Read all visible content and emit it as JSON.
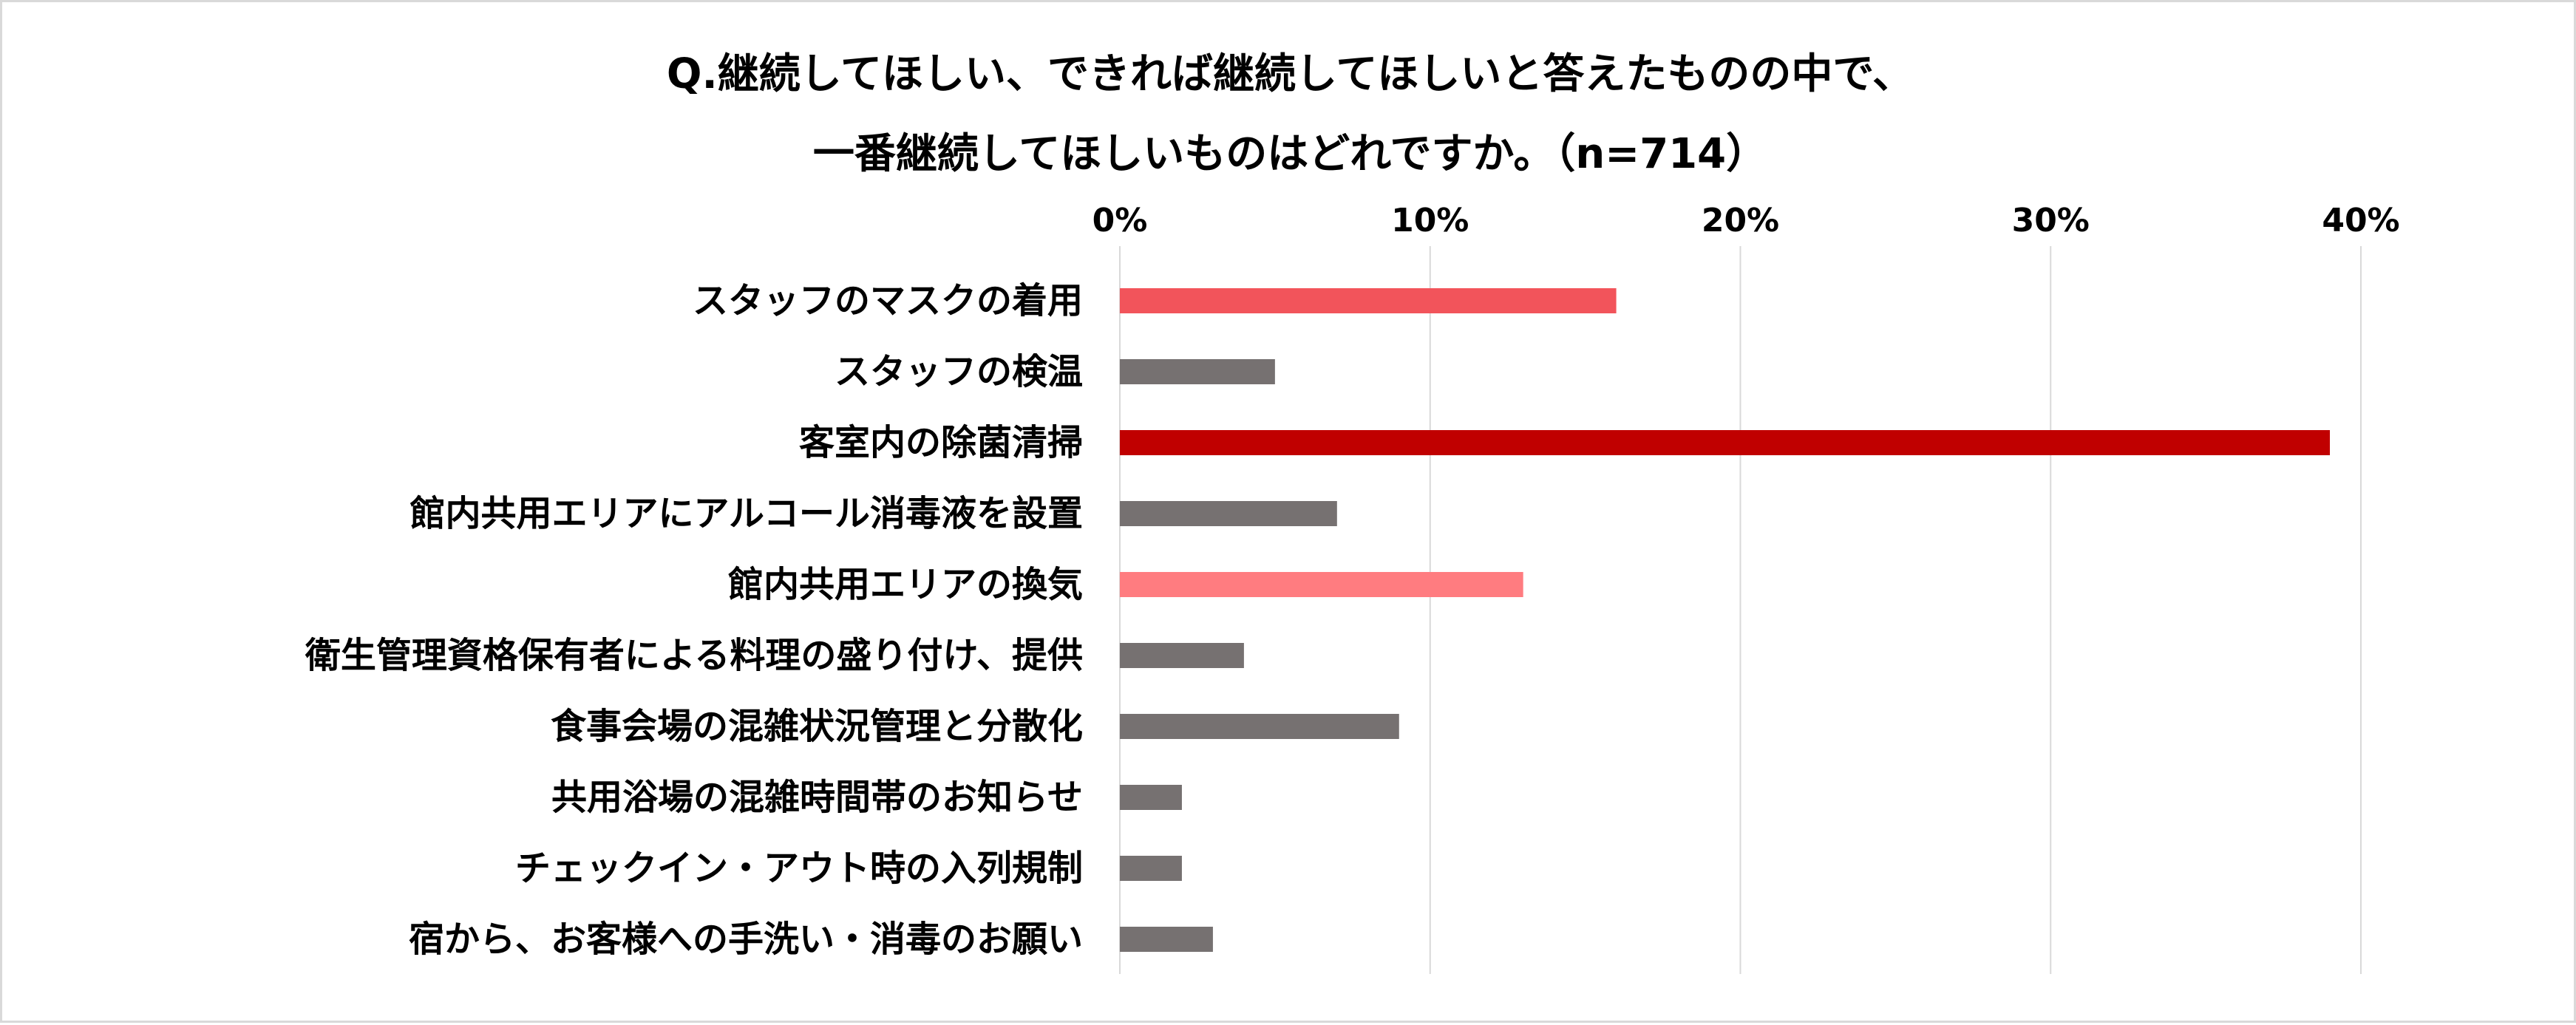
{
  "chart_data": {
    "type": "bar",
    "orientation": "horizontal",
    "title_lines": [
      "Q.継続してほしい、できれば継続してほしいと答えたものの中で、",
      "一番継続してほしいものはどれですか。（n=714）"
    ],
    "xlim": [
      0,
      40
    ],
    "x_ticks": [
      0,
      10,
      20,
      30,
      40
    ],
    "x_tick_labels": [
      "0%",
      "10%",
      "20%",
      "30%",
      "40%"
    ],
    "x_axis_position": "top",
    "grid": true,
    "legend": "none",
    "categories": [
      "スタッフのマスクの着用",
      "スタッフの検温",
      "客室内の除菌清掃",
      "館内共用エリアにアルコール消毒液を設置",
      "館内共用エリアの換気",
      "衛生管理資格保有者による料理の盛り付け、提供",
      "食事会場の混雑状況管理と分散化",
      "共用浴場の混雑時間帯のお知らせ",
      "チェックイン・アウト時の入列規制",
      "宿から、お客様への手洗い・消毒のお願い"
    ],
    "values": [
      16,
      5,
      39,
      7,
      13,
      4,
      9,
      2,
      2,
      3
    ],
    "bar_colors": [
      "#f2545b",
      "#767171",
      "#c00000",
      "#767171",
      "#ff7c80",
      "#767171",
      "#767171",
      "#767171",
      "#767171",
      "#767171"
    ],
    "grid_color": "#d9d9d9"
  }
}
